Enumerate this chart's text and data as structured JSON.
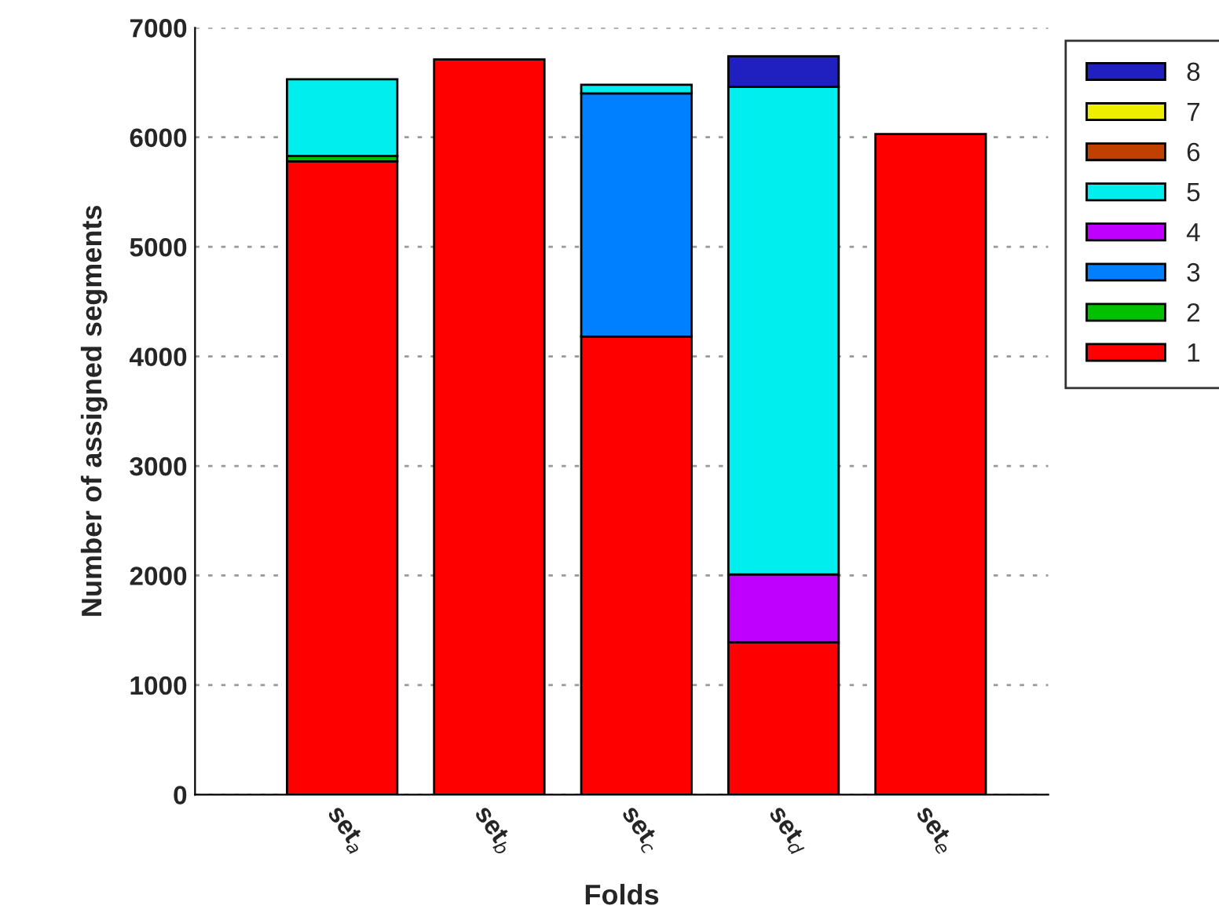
{
  "chart_data": {
    "type": "bar",
    "stacked": true,
    "xlabel": "Folds",
    "ylabel": "Number of assigned segments",
    "categories": [
      "set$_{a}$",
      "set$_{b}$",
      "set$_{c}$",
      "set$_{d}$",
      "set$_{e}$"
    ],
    "series": [
      {
        "name": "1",
        "color": "#ff0000",
        "values": [
          5780,
          6710,
          4180,
          1390,
          6030
        ]
      },
      {
        "name": "2",
        "color": "#00c000",
        "values": [
          50,
          null,
          null,
          null,
          null
        ]
      },
      {
        "name": "3",
        "color": "#0080ff",
        "values": [
          null,
          null,
          2220,
          null,
          null
        ]
      },
      {
        "name": "4",
        "color": "#c000ff",
        "values": [
          null,
          null,
          null,
          620,
          null
        ]
      },
      {
        "name": "5",
        "color": "#00eeee",
        "values": [
          700,
          null,
          80,
          4450,
          null
        ]
      },
      {
        "name": "6",
        "color": "#c04000",
        "values": [
          null,
          null,
          null,
          null,
          null
        ]
      },
      {
        "name": "7",
        "color": "#eeee00",
        "values": [
          null,
          null,
          null,
          null,
          null
        ]
      },
      {
        "name": "8",
        "color": "#2020c0",
        "values": [
          null,
          null,
          null,
          280,
          null
        ]
      }
    ],
    "ylim": [
      0,
      7000
    ],
    "yticks": [
      0,
      1000,
      2000,
      3000,
      4000,
      5000,
      6000,
      7000
    ],
    "grid": "y",
    "legend": "top right"
  }
}
